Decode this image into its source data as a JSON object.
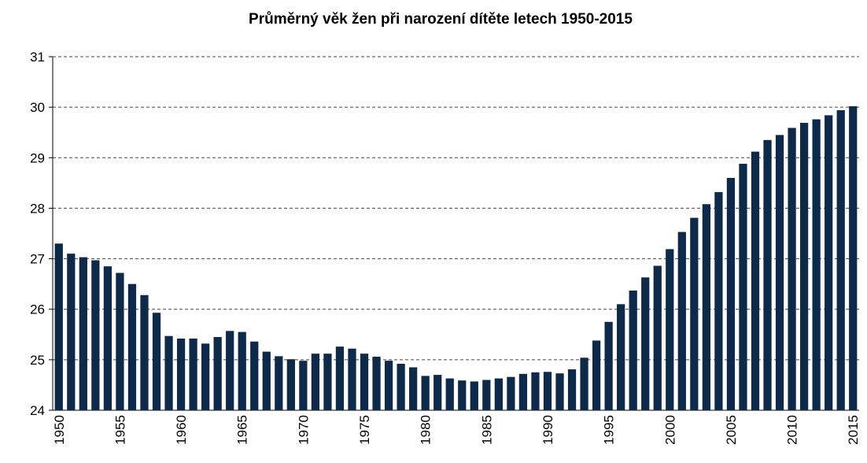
{
  "chart_data": {
    "type": "bar",
    "title": "Průměrný věk žen při narození dítěte letech 1950-2015",
    "categories": [
      "1950",
      null,
      null,
      null,
      null,
      "1955",
      null,
      null,
      null,
      null,
      "1960",
      null,
      null,
      null,
      null,
      "1965",
      null,
      null,
      null,
      null,
      "1970",
      null,
      null,
      null,
      null,
      "1975",
      null,
      null,
      null,
      null,
      "1980",
      null,
      null,
      null,
      null,
      "1985",
      null,
      null,
      null,
      null,
      "1990",
      null,
      null,
      null,
      null,
      "1995",
      null,
      null,
      null,
      null,
      "2000",
      null,
      null,
      null,
      null,
      "2005",
      null,
      null,
      null,
      null,
      "2010",
      null,
      null,
      null,
      null,
      "2015"
    ],
    "values": [
      27.3,
      27.1,
      27.03,
      26.97,
      26.85,
      26.72,
      26.5,
      26.28,
      25.93,
      25.47,
      25.42,
      25.42,
      25.32,
      25.45,
      25.57,
      25.55,
      25.36,
      25.16,
      25.07,
      25.01,
      24.98,
      25.12,
      25.12,
      25.26,
      25.22,
      25.12,
      25.06,
      24.98,
      24.92,
      24.85,
      24.68,
      24.7,
      24.63,
      24.59,
      24.57,
      24.6,
      24.63,
      24.66,
      24.72,
      24.75,
      24.76,
      24.73,
      24.81,
      25.04,
      25.38,
      25.75,
      26.1,
      26.37,
      26.63,
      26.86,
      27.19,
      27.53,
      27.81,
      28.08,
      28.32,
      28.6,
      28.88,
      29.12,
      29.35,
      29.45,
      29.59,
      29.69,
      29.76,
      29.84,
      29.94,
      30.02
    ],
    "color": "#0d2a4a",
    "ylim": [
      24,
      31
    ],
    "yticks": [
      24,
      25,
      26,
      27,
      28,
      29,
      30,
      31
    ],
    "grid": true
  }
}
